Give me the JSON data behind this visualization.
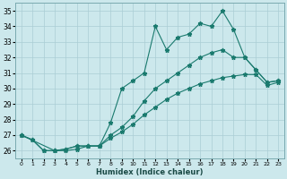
{
  "xlabel": "Humidex (Indice chaleur)",
  "bg_color": "#cce8ec",
  "grid_color": "#aacdd4",
  "line_color": "#1a7a6e",
  "xlim": [
    -0.5,
    23.5
  ],
  "ylim": [
    25.5,
    35.5
  ],
  "xticks": [
    0,
    1,
    2,
    3,
    4,
    5,
    6,
    7,
    8,
    9,
    10,
    11,
    12,
    13,
    14,
    15,
    16,
    17,
    18,
    19,
    20,
    21,
    22,
    23
  ],
  "yticks": [
    26,
    27,
    28,
    29,
    30,
    31,
    32,
    33,
    34,
    35
  ],
  "line1_x": [
    0,
    1,
    2,
    3,
    4,
    5,
    6,
    7,
    8,
    9,
    10,
    11,
    12,
    13,
    14,
    15,
    16,
    17,
    18,
    19,
    20,
    21,
    22,
    23
  ],
  "line1_y": [
    27.0,
    26.7,
    26.0,
    26.0,
    26.1,
    26.3,
    26.3,
    26.3,
    27.8,
    30.0,
    30.5,
    31.0,
    34.0,
    32.5,
    33.3,
    33.5,
    34.2,
    34.0,
    35.0,
    33.8,
    32.0,
    31.2,
    30.4,
    30.5
  ],
  "line2_x": [
    0,
    1,
    2,
    3,
    4,
    5,
    6,
    7,
    8,
    9,
    10,
    11,
    12,
    13,
    14,
    15,
    16,
    17,
    18,
    19,
    20,
    21,
    22,
    23
  ],
  "line2_y": [
    27.0,
    26.7,
    26.0,
    26.0,
    26.1,
    26.3,
    26.3,
    26.3,
    27.0,
    27.5,
    28.2,
    29.2,
    30.0,
    30.5,
    31.0,
    31.5,
    32.0,
    32.3,
    32.5,
    32.0,
    32.0,
    31.2,
    30.4,
    30.5
  ],
  "line3_x": [
    0,
    3,
    4,
    5,
    6,
    7,
    8,
    9,
    10,
    11,
    12,
    13,
    14,
    15,
    16,
    17,
    18,
    19,
    20,
    21,
    22,
    23
  ],
  "line3_y": [
    27.0,
    26.0,
    26.0,
    26.1,
    26.3,
    26.3,
    26.8,
    27.2,
    27.7,
    28.3,
    28.8,
    29.3,
    29.7,
    30.0,
    30.3,
    30.5,
    30.7,
    30.8,
    30.9,
    30.9,
    30.2,
    30.4
  ]
}
